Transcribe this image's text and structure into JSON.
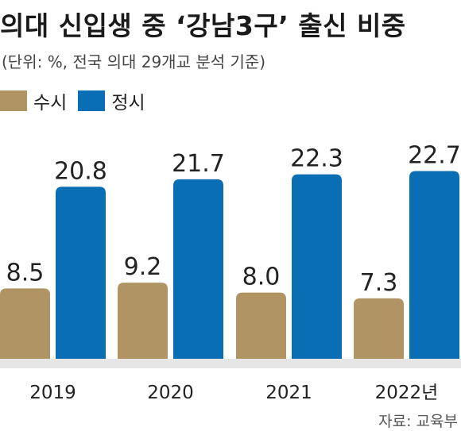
{
  "header": {
    "title": "의대 신입생 중 ‘강남3구’ 출신 비중",
    "subtitle": "(단위: %, 전국 의대 29개교 분석 기준)"
  },
  "footer": {
    "source": "자료: 교육부"
  },
  "colors": {
    "susi": "#b09463",
    "jeongsi": "#0a6eb4",
    "floor": "#e6e6e6"
  },
  "chart_data": {
    "type": "bar",
    "categories": [
      "2019",
      "2020",
      "2021",
      "2022년"
    ],
    "series": [
      {
        "name": "수시",
        "values": [
          8.5,
          9.2,
          8.0,
          7.3
        ],
        "labels": [
          "8.5",
          "9.2",
          "8.0",
          "7.3"
        ]
      },
      {
        "name": "정시",
        "values": [
          20.8,
          21.7,
          22.3,
          22.7
        ],
        "labels": [
          "20.8",
          "21.7",
          "22.3",
          "22.7"
        ]
      }
    ],
    "grid": false,
    "legend_position": "top-left"
  }
}
